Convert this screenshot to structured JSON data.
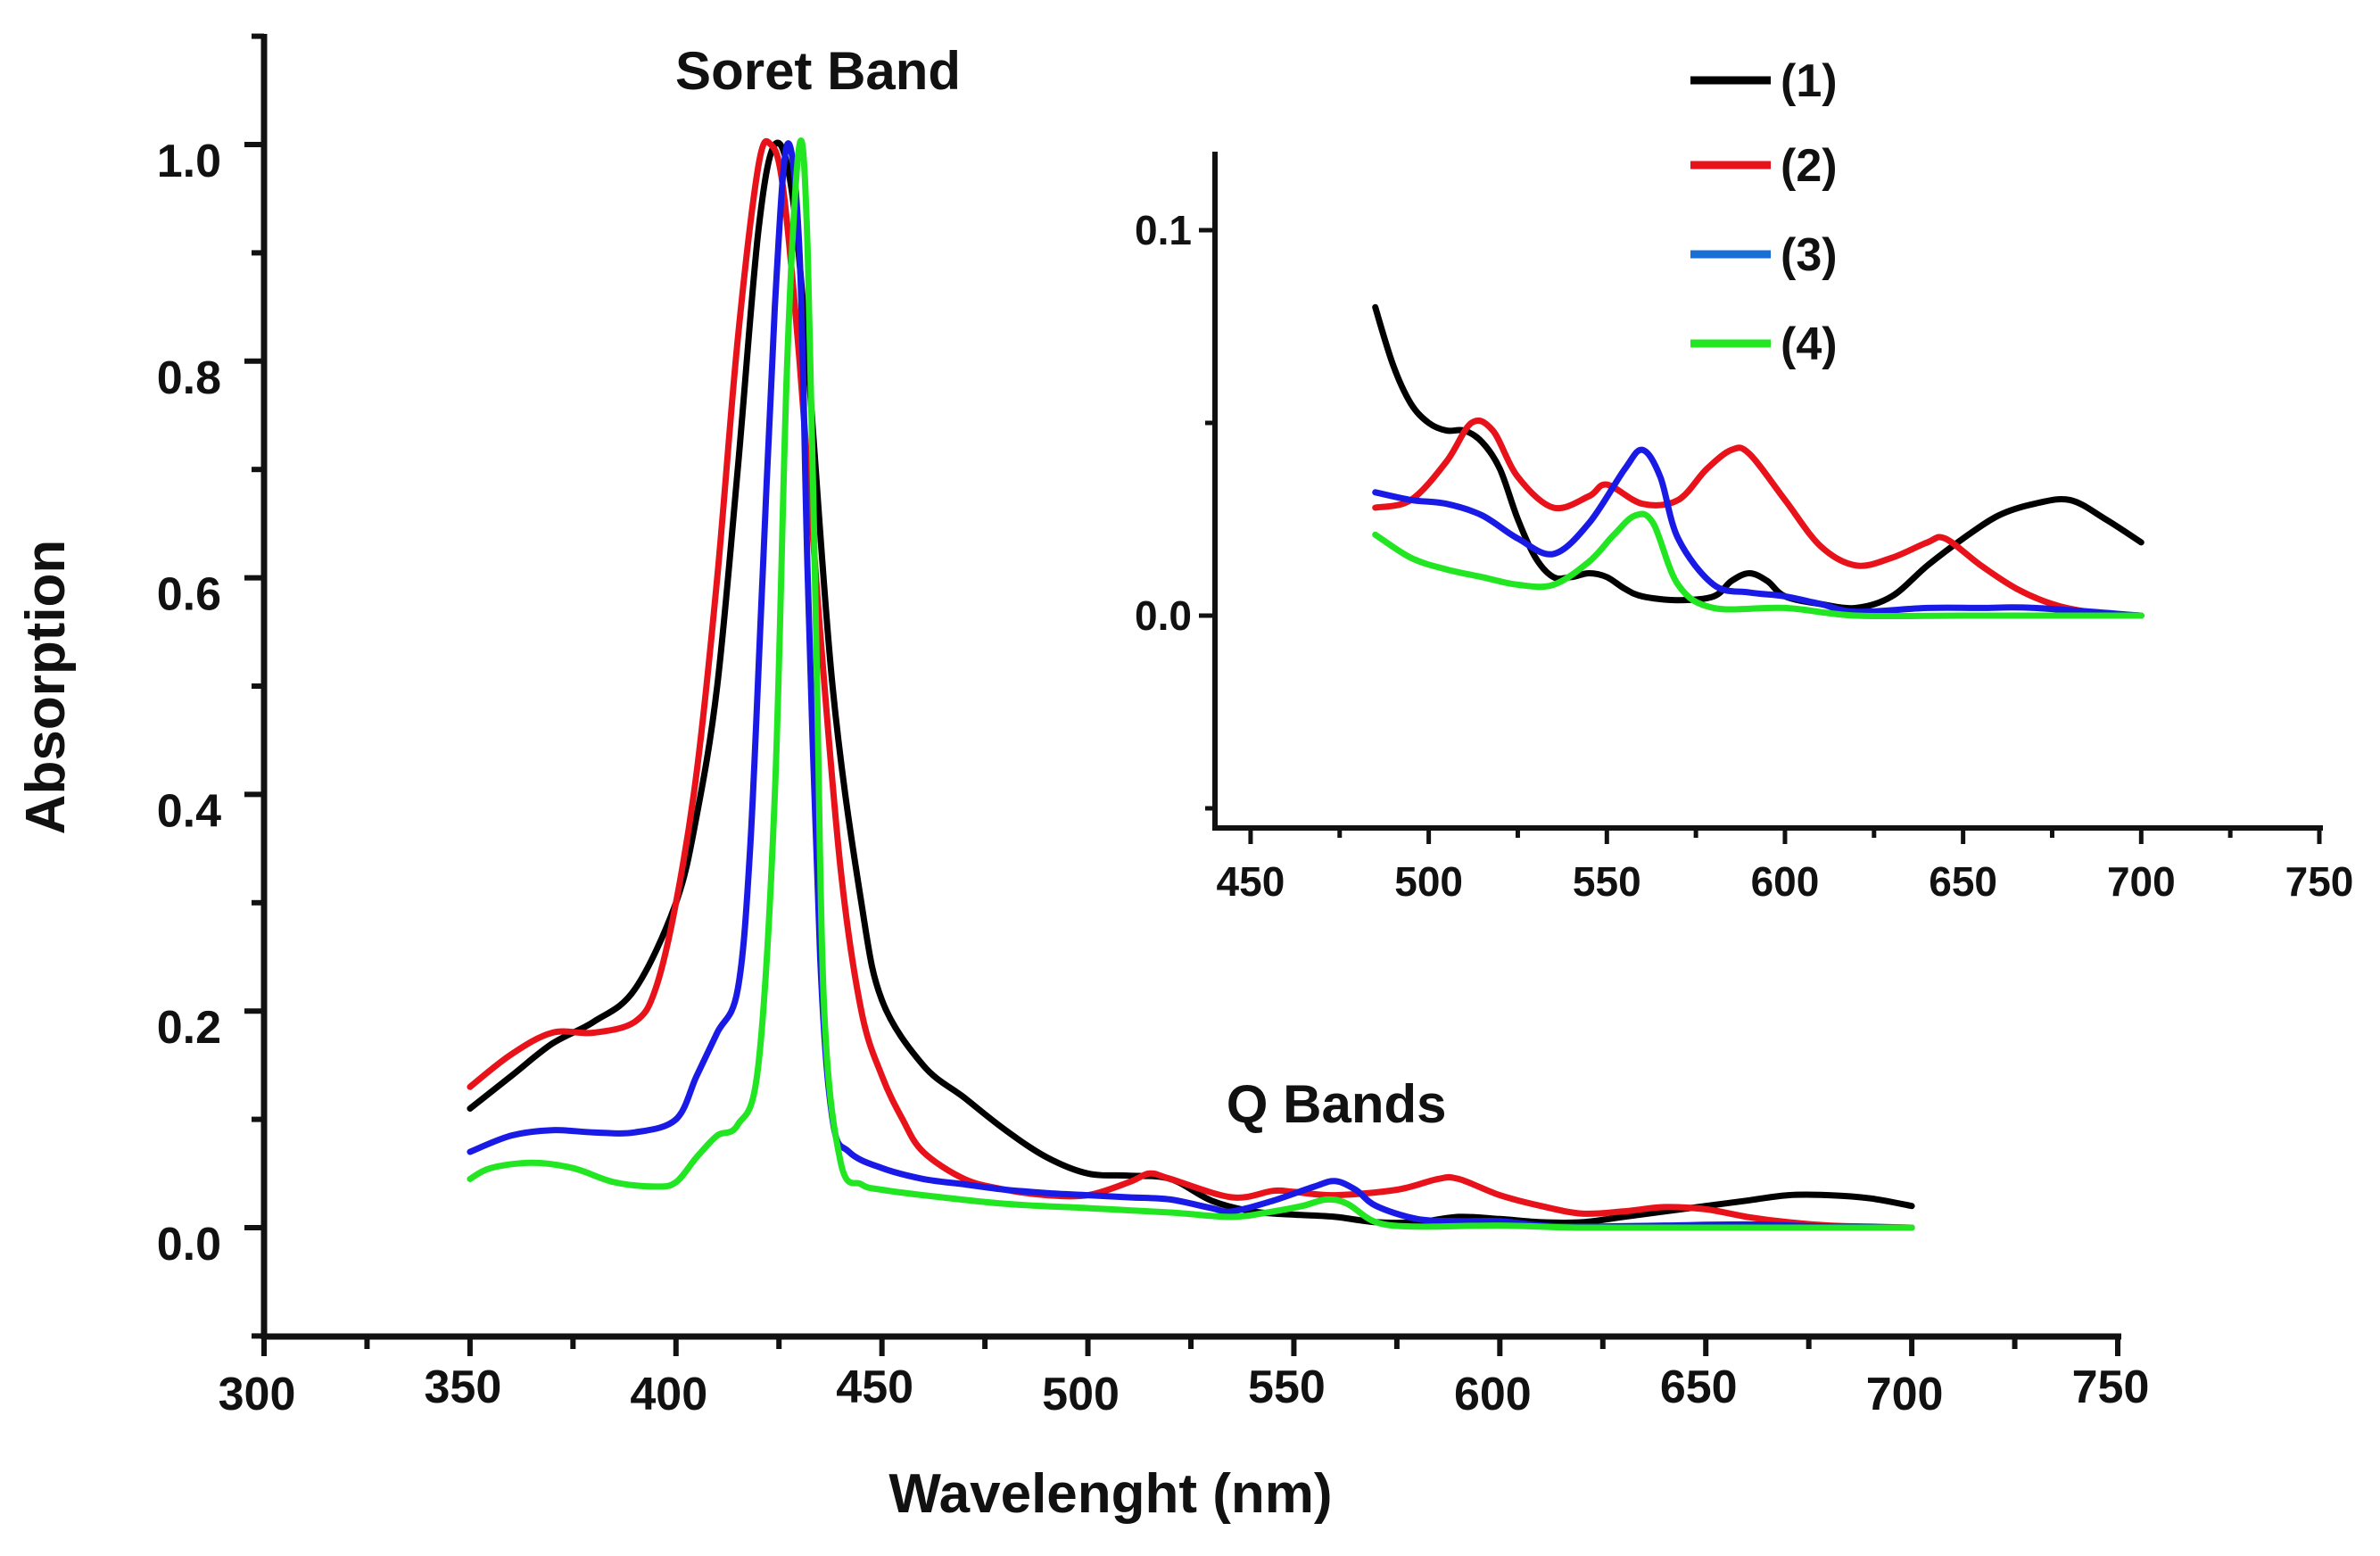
{
  "chart_data": [
    {
      "id": "main",
      "type": "line",
      "title": "",
      "xlabel": "Wavelenght (nm)",
      "ylabel": "Absorption",
      "xlim": [
        300,
        750
      ],
      "ylim": [
        -0.1,
        1.1
      ],
      "xticks": [
        "300",
        "350",
        "400",
        "450",
        "500",
        "550",
        "600",
        "650",
        "700",
        "750"
      ],
      "yticks": [
        "0.0",
        "0.2",
        "0.4",
        "0.6",
        "0.8",
        "1.0"
      ],
      "annotations": [
        {
          "text": "Soret Band",
          "x": 428,
          "y": 1.06
        },
        {
          "text": "Q Bands",
          "x": 556,
          "y": 0.11
        }
      ],
      "legend": [
        "(1)",
        "(2)",
        "(3)",
        "(4)"
      ],
      "series": [
        {
          "name": "(1)",
          "color": "#000000",
          "points": [
            [
              350,
              0.11
            ],
            [
              360,
              0.14
            ],
            [
              370,
              0.17
            ],
            [
              380,
              0.19
            ],
            [
              390,
              0.22
            ],
            [
              400,
              0.3
            ],
            [
              405,
              0.38
            ],
            [
              410,
              0.5
            ],
            [
              415,
              0.7
            ],
            [
              420,
              0.92
            ],
            [
              424,
              1.0
            ],
            [
              428,
              0.96
            ],
            [
              432,
              0.8
            ],
            [
              438,
              0.5
            ],
            [
              445,
              0.3
            ],
            [
              450,
              0.21
            ],
            [
              460,
              0.15
            ],
            [
              470,
              0.12
            ],
            [
              480,
              0.09
            ],
            [
              490,
              0.065
            ],
            [
              500,
              0.05
            ],
            [
              510,
              0.048
            ],
            [
              520,
              0.045
            ],
            [
              530,
              0.025
            ],
            [
              540,
              0.015
            ],
            [
              550,
              0.012
            ],
            [
              560,
              0.01
            ],
            [
              570,
              0.005
            ],
            [
              580,
              0.005
            ],
            [
              590,
              0.01
            ],
            [
              600,
              0.008
            ],
            [
              610,
              0.005
            ],
            [
              620,
              0.005
            ],
            [
              630,
              0.01
            ],
            [
              640,
              0.015
            ],
            [
              650,
              0.02
            ],
            [
              660,
              0.025
            ],
            [
              670,
              0.03
            ],
            [
              680,
              0.03
            ],
            [
              690,
              0.027
            ],
            [
              700,
              0.02
            ]
          ]
        },
        {
          "name": "(2)",
          "color": "#e8121a",
          "points": [
            [
              350,
              0.13
            ],
            [
              360,
              0.16
            ],
            [
              370,
              0.18
            ],
            [
              380,
              0.18
            ],
            [
              390,
              0.19
            ],
            [
              395,
              0.22
            ],
            [
              400,
              0.3
            ],
            [
              405,
              0.42
            ],
            [
              410,
              0.6
            ],
            [
              415,
              0.82
            ],
            [
              420,
              0.98
            ],
            [
              423,
              1.0
            ],
            [
              426,
              0.96
            ],
            [
              430,
              0.8
            ],
            [
              435,
              0.55
            ],
            [
              440,
              0.33
            ],
            [
              445,
              0.2
            ],
            [
              450,
              0.14
            ],
            [
              455,
              0.1
            ],
            [
              460,
              0.07
            ],
            [
              470,
              0.045
            ],
            [
              480,
              0.035
            ],
            [
              490,
              0.03
            ],
            [
              500,
              0.03
            ],
            [
              510,
              0.042
            ],
            [
              515,
              0.05
            ],
            [
              520,
              0.045
            ],
            [
              535,
              0.028
            ],
            [
              545,
              0.034
            ],
            [
              550,
              0.033
            ],
            [
              560,
              0.03
            ],
            [
              575,
              0.035
            ],
            [
              585,
              0.045
            ],
            [
              590,
              0.045
            ],
            [
              600,
              0.03
            ],
            [
              610,
              0.02
            ],
            [
              620,
              0.013
            ],
            [
              630,
              0.015
            ],
            [
              640,
              0.019
            ],
            [
              650,
              0.017
            ],
            [
              660,
              0.01
            ],
            [
              670,
              0.005
            ],
            [
              680,
              0.002
            ],
            [
              690,
              0.001
            ],
            [
              700,
              0.0
            ]
          ]
        },
        {
          "name": "(3)",
          "color": "#1a1ae6",
          "points": [
            [
              350,
              0.07
            ],
            [
              360,
              0.085
            ],
            [
              370,
              0.09
            ],
            [
              380,
              0.088
            ],
            [
              390,
              0.088
            ],
            [
              400,
              0.1
            ],
            [
              405,
              0.14
            ],
            [
              410,
              0.18
            ],
            [
              415,
              0.22
            ],
            [
              418,
              0.35
            ],
            [
              421,
              0.6
            ],
            [
              424,
              0.85
            ],
            [
              427,
              1.0
            ],
            [
              430,
              0.9
            ],
            [
              432,
              0.6
            ],
            [
              435,
              0.25
            ],
            [
              438,
              0.1
            ],
            [
              442,
              0.07
            ],
            [
              450,
              0.055
            ],
            [
              460,
              0.045
            ],
            [
              470,
              0.04
            ],
            [
              480,
              0.035
            ],
            [
              490,
              0.032
            ],
            [
              500,
              0.03
            ],
            [
              510,
              0.028
            ],
            [
              520,
              0.026
            ],
            [
              530,
              0.018
            ],
            [
              535,
              0.015
            ],
            [
              545,
              0.025
            ],
            [
              555,
              0.038
            ],
            [
              560,
              0.043
            ],
            [
              565,
              0.035
            ],
            [
              570,
              0.02
            ],
            [
              580,
              0.008
            ],
            [
              590,
              0.006
            ],
            [
              600,
              0.006
            ],
            [
              610,
              0.002
            ],
            [
              620,
              0.001
            ],
            [
              640,
              0.002
            ],
            [
              660,
              0.003
            ],
            [
              680,
              0.001
            ],
            [
              700,
              0.0
            ]
          ]
        },
        {
          "name": "(4)",
          "color": "#21e621",
          "points": [
            [
              350,
              0.045
            ],
            [
              355,
              0.055
            ],
            [
              365,
              0.06
            ],
            [
              375,
              0.055
            ],
            [
              385,
              0.042
            ],
            [
              395,
              0.038
            ],
            [
              400,
              0.042
            ],
            [
              405,
              0.065
            ],
            [
              410,
              0.085
            ],
            [
              415,
              0.095
            ],
            [
              420,
              0.15
            ],
            [
              424,
              0.4
            ],
            [
              427,
              0.8
            ],
            [
              430,
              1.0
            ],
            [
              432,
              0.9
            ],
            [
              434,
              0.55
            ],
            [
              436,
              0.2
            ],
            [
              440,
              0.06
            ],
            [
              445,
              0.04
            ],
            [
              450,
              0.035
            ],
            [
              460,
              0.03
            ],
            [
              480,
              0.022
            ],
            [
              500,
              0.018
            ],
            [
              520,
              0.014
            ],
            [
              535,
              0.01
            ],
            [
              545,
              0.015
            ],
            [
              552,
              0.02
            ],
            [
              558,
              0.026
            ],
            [
              563,
              0.022
            ],
            [
              570,
              0.005
            ],
            [
              580,
              0.001
            ],
            [
              600,
              0.002
            ],
            [
              620,
              0.0
            ],
            [
              650,
              0.0
            ],
            [
              700,
              0.0
            ]
          ]
        }
      ]
    },
    {
      "id": "inset",
      "type": "line",
      "title": "",
      "xlabel": "",
      "ylabel": "",
      "xlim": [
        440,
        750
      ],
      "ylim": [
        -0.055,
        0.12
      ],
      "xticks": [
        "450",
        "500",
        "550",
        "600",
        "650",
        "700",
        "750"
      ],
      "yticks": [
        "0.0",
        "0.1"
      ],
      "series": [
        {
          "name": "(1)",
          "color": "#000000",
          "points": [
            [
              485,
              0.08
            ],
            [
              490,
              0.065
            ],
            [
              495,
              0.055
            ],
            [
              500,
              0.05
            ],
            [
              505,
              0.048
            ],
            [
              510,
              0.048
            ],
            [
              515,
              0.045
            ],
            [
              520,
              0.038
            ],
            [
              525,
              0.025
            ],
            [
              530,
              0.015
            ],
            [
              535,
              0.01
            ],
            [
              540,
              0.01
            ],
            [
              545,
              0.011
            ],
            [
              550,
              0.01
            ],
            [
              555,
              0.007
            ],
            [
              560,
              0.005
            ],
            [
              570,
              0.004
            ],
            [
              580,
              0.005
            ],
            [
              585,
              0.009
            ],
            [
              590,
              0.011
            ],
            [
              595,
              0.009
            ],
            [
              600,
              0.005
            ],
            [
              610,
              0.003
            ],
            [
              620,
              0.002
            ],
            [
              630,
              0.005
            ],
            [
              640,
              0.013
            ],
            [
              650,
              0.02
            ],
            [
              660,
              0.026
            ],
            [
              670,
              0.029
            ],
            [
              680,
              0.03
            ],
            [
              690,
              0.025
            ],
            [
              700,
              0.019
            ]
          ]
        },
        {
          "name": "(2)",
          "color": "#e8121a",
          "points": [
            [
              485,
              0.028
            ],
            [
              495,
              0.03
            ],
            [
              505,
              0.04
            ],
            [
              512,
              0.05
            ],
            [
              518,
              0.048
            ],
            [
              525,
              0.036
            ],
            [
              535,
              0.028
            ],
            [
              545,
              0.031
            ],
            [
              550,
              0.034
            ],
            [
              560,
              0.029
            ],
            [
              570,
              0.03
            ],
            [
              578,
              0.038
            ],
            [
              585,
              0.043
            ],
            [
              590,
              0.042
            ],
            [
              600,
              0.03
            ],
            [
              610,
              0.018
            ],
            [
              620,
              0.013
            ],
            [
              630,
              0.015
            ],
            [
              640,
              0.019
            ],
            [
              645,
              0.02
            ],
            [
              655,
              0.013
            ],
            [
              665,
              0.007
            ],
            [
              675,
              0.003
            ],
            [
              685,
              0.001
            ],
            [
              700,
              0.0
            ]
          ]
        },
        {
          "name": "(3)",
          "color": "#1a1ae6",
          "points": [
            [
              485,
              0.032
            ],
            [
              495,
              0.03
            ],
            [
              505,
              0.029
            ],
            [
              515,
              0.026
            ],
            [
              525,
              0.02
            ],
            [
              535,
              0.016
            ],
            [
              545,
              0.024
            ],
            [
              555,
              0.038
            ],
            [
              560,
              0.043
            ],
            [
              565,
              0.036
            ],
            [
              570,
              0.02
            ],
            [
              580,
              0.008
            ],
            [
              590,
              0.006
            ],
            [
              600,
              0.005
            ],
            [
              610,
              0.003
            ],
            [
              620,
              0.001
            ],
            [
              640,
              0.002
            ],
            [
              655,
              0.002
            ],
            [
              670,
              0.002
            ],
            [
              700,
              0.0
            ]
          ]
        },
        {
          "name": "(4)",
          "color": "#21e621",
          "points": [
            [
              485,
              0.021
            ],
            [
              495,
              0.015
            ],
            [
              505,
              0.012
            ],
            [
              515,
              0.01
            ],
            [
              525,
              0.008
            ],
            [
              535,
              0.008
            ],
            [
              545,
              0.014
            ],
            [
              552,
              0.021
            ],
            [
              558,
              0.026
            ],
            [
              563,
              0.024
            ],
            [
              570,
              0.008
            ],
            [
              580,
              0.002
            ],
            [
              600,
              0.002
            ],
            [
              620,
              0.0
            ],
            [
              650,
              0.0
            ],
            [
              700,
              0.0
            ]
          ]
        }
      ]
    }
  ]
}
